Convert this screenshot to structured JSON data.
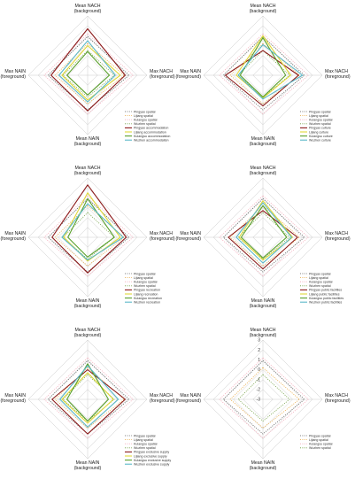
{
  "chart_data": [
    {
      "type": "radar",
      "axes": [
        "Mean NACH (background)",
        "Max NACH (foreground)",
        "Mean NAIN (background)",
        "Max NAIN (foreground)"
      ],
      "rlim": [
        -3,
        3
      ],
      "series": [
        {
          "name": "Pingyao spatial",
          "color": "#555555",
          "dash": "dot",
          "values": [
            0.9,
            1.2,
            0.5,
            1.0
          ]
        },
        {
          "name": "Lijiang spatial",
          "color": "#e6a43a",
          "dash": "dot",
          "values": [
            0.2,
            0.7,
            -0.1,
            0.3
          ]
        },
        {
          "name": "Kulangsu spatial",
          "color": "#f3a6b6",
          "dash": "dot",
          "values": [
            1.2,
            1.6,
            0.9,
            1.4
          ]
        },
        {
          "name": "Wuzhen spatial",
          "color": "#6b9a3a",
          "dash": "dot",
          "values": [
            -0.5,
            -0.3,
            -0.8,
            -0.5
          ]
        },
        {
          "name": "Pingyao accommodation",
          "color": "#8b1a1a",
          "dash": "solid",
          "values": [
            1.7,
            0.8,
            0.6,
            0.7
          ]
        },
        {
          "name": "Lijiang accommodation",
          "color": "#e0d83a",
          "dash": "solid",
          "values": [
            0.0,
            0.3,
            -0.5,
            -0.4
          ]
        },
        {
          "name": "Kulangsu accommodation",
          "color": "#5aa02c",
          "dash": "solid",
          "values": [
            -0.6,
            -0.8,
            -1.0,
            -0.9
          ]
        },
        {
          "name": "Wuzhen accommodation",
          "color": "#5bb8c8",
          "dash": "solid",
          "values": [
            0.5,
            -0.2,
            -0.3,
            -0.1
          ]
        }
      ]
    },
    {
      "type": "radar",
      "axes": [
        "Mean NACH (background)",
        "Max NACH (foreground)",
        "Mean NAIN (background)",
        "Max NAIN (foreground)"
      ],
      "rlim": [
        -3,
        3
      ],
      "series": [
        {
          "name": "Pingyao spatial",
          "color": "#555555",
          "dash": "dot",
          "values": [
            0.9,
            1.2,
            0.5,
            1.0
          ]
        },
        {
          "name": "Lijiang spatial",
          "color": "#e6a43a",
          "dash": "dot",
          "values": [
            0.2,
            0.7,
            -0.1,
            0.3
          ]
        },
        {
          "name": "Kulangsu spatial",
          "color": "#f3a6b6",
          "dash": "dot",
          "values": [
            1.2,
            1.6,
            0.9,
            1.4
          ]
        },
        {
          "name": "Wuzhen spatial",
          "color": "#6b9a3a",
          "dash": "dot",
          "values": [
            -0.5,
            -0.3,
            -0.8,
            -0.5
          ]
        },
        {
          "name": "Pingyao culture",
          "color": "#8b1a1a",
          "dash": "solid",
          "values": [
            -0.5,
            0.6,
            0.1,
            0.8
          ]
        },
        {
          "name": "Lijiang culture",
          "color": "#e0d83a",
          "dash": "solid",
          "values": [
            1.0,
            -0.2,
            -0.7,
            -0.3
          ]
        },
        {
          "name": "Kulangsu culture",
          "color": "#5aa02c",
          "dash": "solid",
          "values": [
            0.8,
            -0.7,
            -0.8,
            -0.7
          ]
        },
        {
          "name": "Wuzhen culture",
          "color": "#5bb8c8",
          "dash": "solid",
          "values": [
            0.1,
            1.0,
            -0.6,
            -0.5
          ]
        }
      ]
    },
    {
      "type": "radar",
      "axes": [
        "Mean NACH (background)",
        "Max NACH (foreground)",
        "Mean NAIN (background)",
        "Max NAIN (foreground)"
      ],
      "rlim": [
        -3,
        3
      ],
      "series": [
        {
          "name": "Pingyao spatial",
          "color": "#555555",
          "dash": "dot",
          "values": [
            0.9,
            1.2,
            0.5,
            1.0
          ]
        },
        {
          "name": "Lijiang spatial",
          "color": "#e6a43a",
          "dash": "dot",
          "values": [
            0.2,
            0.7,
            -0.1,
            0.3
          ]
        },
        {
          "name": "Kulangsu spatial",
          "color": "#f3a6b6",
          "dash": "dot",
          "values": [
            1.2,
            1.6,
            0.9,
            1.4
          ]
        },
        {
          "name": "Wuzhen spatial",
          "color": "#6b9a3a",
          "dash": "dot",
          "values": [
            -0.5,
            -0.3,
            -0.8,
            -0.5
          ]
        },
        {
          "name": "Pingyao recreation",
          "color": "#8b1a1a",
          "dash": "solid",
          "values": [
            2.3,
            0.9,
            0.6,
            0.6
          ]
        },
        {
          "name": "Lijiang recreation",
          "color": "#e0d83a",
          "dash": "solid",
          "values": [
            1.5,
            0.3,
            -0.6,
            -0.6
          ]
        },
        {
          "name": "Kulangsu recreation",
          "color": "#5aa02c",
          "dash": "solid",
          "values": [
            0.9,
            -0.3,
            -1.0,
            -1.0
          ]
        },
        {
          "name": "Wuzhen recreation",
          "color": "#5bb8c8",
          "dash": "solid",
          "values": [
            0.4,
            0.6,
            -0.7,
            -0.4
          ]
        }
      ]
    },
    {
      "type": "radar",
      "axes": [
        "Mean NACH (background)",
        "Max NACH (foreground)",
        "Mean NAIN (background)",
        "Max NAIN (foreground)"
      ],
      "rlim": [
        -3,
        3
      ],
      "series": [
        {
          "name": "Pingyao spatial",
          "color": "#555555",
          "dash": "dot",
          "values": [
            0.9,
            1.2,
            0.5,
            1.0
          ]
        },
        {
          "name": "Lijiang spatial",
          "color": "#e6a43a",
          "dash": "dot",
          "values": [
            0.2,
            0.7,
            -0.1,
            0.3
          ]
        },
        {
          "name": "Kulangsu spatial",
          "color": "#f3a6b6",
          "dash": "dot",
          "values": [
            1.2,
            1.6,
            0.9,
            1.4
          ]
        },
        {
          "name": "Wuzhen spatial",
          "color": "#6b9a3a",
          "dash": "dot",
          "values": [
            -0.5,
            -0.3,
            -0.8,
            -0.5
          ]
        },
        {
          "name": "Pingyao public facilities",
          "color": "#8b1a1a",
          "dash": "solid",
          "values": [
            -0.3,
            0.5,
            0.2,
            0.5
          ]
        },
        {
          "name": "Lijiang public facilities",
          "color": "#e0d83a",
          "dash": "solid",
          "values": [
            0.7,
            0.0,
            -0.7,
            -0.6
          ]
        },
        {
          "name": "Kulangsu public facilities",
          "color": "#5aa02c",
          "dash": "solid",
          "values": [
            0.2,
            -0.6,
            -0.9,
            -0.8
          ]
        },
        {
          "name": "Wuzhen public facilities",
          "color": "#5bb8c8",
          "dash": "solid",
          "values": [
            0.5,
            -0.1,
            -0.4,
            -0.3
          ]
        }
      ]
    },
    {
      "type": "radar",
      "axes": [
        "Mean NACH (background)",
        "Max NACH (foreground)",
        "Mean NAIN (background)",
        "Max NAIN (foreground)"
      ],
      "rlim": [
        -3,
        3
      ],
      "series": [
        {
          "name": "Pingyao spatial",
          "color": "#555555",
          "dash": "dot",
          "values": [
            0.9,
            1.2,
            0.5,
            1.0
          ]
        },
        {
          "name": "Lijiang spatial",
          "color": "#e6a43a",
          "dash": "dot",
          "values": [
            0.2,
            0.7,
            -0.1,
            0.3
          ]
        },
        {
          "name": "Kulangsu spatial",
          "color": "#f3a6b6",
          "dash": "dot",
          "values": [
            1.2,
            1.6,
            0.9,
            1.4
          ]
        },
        {
          "name": "Wuzhen spatial",
          "color": "#6b9a3a",
          "dash": "dot",
          "values": [
            -0.5,
            -0.3,
            -0.8,
            -0.5
          ]
        },
        {
          "name": "Pingyao exclusive supply",
          "color": "#8b1a1a",
          "dash": "solid",
          "values": [
            0.0,
            0.8,
            0.5,
            0.6
          ]
        },
        {
          "name": "Lijiang exclusive supply",
          "color": "#e0d83a",
          "dash": "solid",
          "values": [
            -0.3,
            -0.4,
            -0.6,
            -0.4
          ]
        },
        {
          "name": "Kulangsu exclusive supply",
          "color": "#5aa02c",
          "dash": "solid",
          "values": [
            0.6,
            -0.9,
            -0.8,
            -0.9
          ]
        },
        {
          "name": "Wuzhen exclusive supply",
          "color": "#5bb8c8",
          "dash": "solid",
          "values": [
            0.4,
            0.1,
            -0.2,
            -0.2
          ]
        }
      ]
    },
    {
      "type": "radar",
      "axes": [
        "Mean NACH (background)",
        "Max NACH (foreground)",
        "Mean NAIN (background)",
        "Max NAIN (foreground)"
      ],
      "rlim": [
        -3,
        3
      ],
      "ticks": [
        "3",
        "2",
        "1",
        "0",
        "-1",
        "-2",
        "-3"
      ],
      "series": [
        {
          "name": "Pingyao spatial",
          "color": "#555555",
          "dash": "dot",
          "values": [
            0.9,
            1.2,
            0.5,
            1.0
          ]
        },
        {
          "name": "Lijiang spatial",
          "color": "#e6a43a",
          "dash": "dot",
          "values": [
            0.2,
            0.7,
            -0.1,
            0.3
          ]
        },
        {
          "name": "Kulangsu spatial",
          "color": "#f3a6b6",
          "dash": "dot",
          "values": [
            1.2,
            1.6,
            0.9,
            1.4
          ]
        },
        {
          "name": "Wuzhen spatial",
          "color": "#6b9a3a",
          "dash": "dot",
          "values": [
            -0.5,
            -0.3,
            -0.8,
            -0.5
          ]
        }
      ]
    }
  ]
}
